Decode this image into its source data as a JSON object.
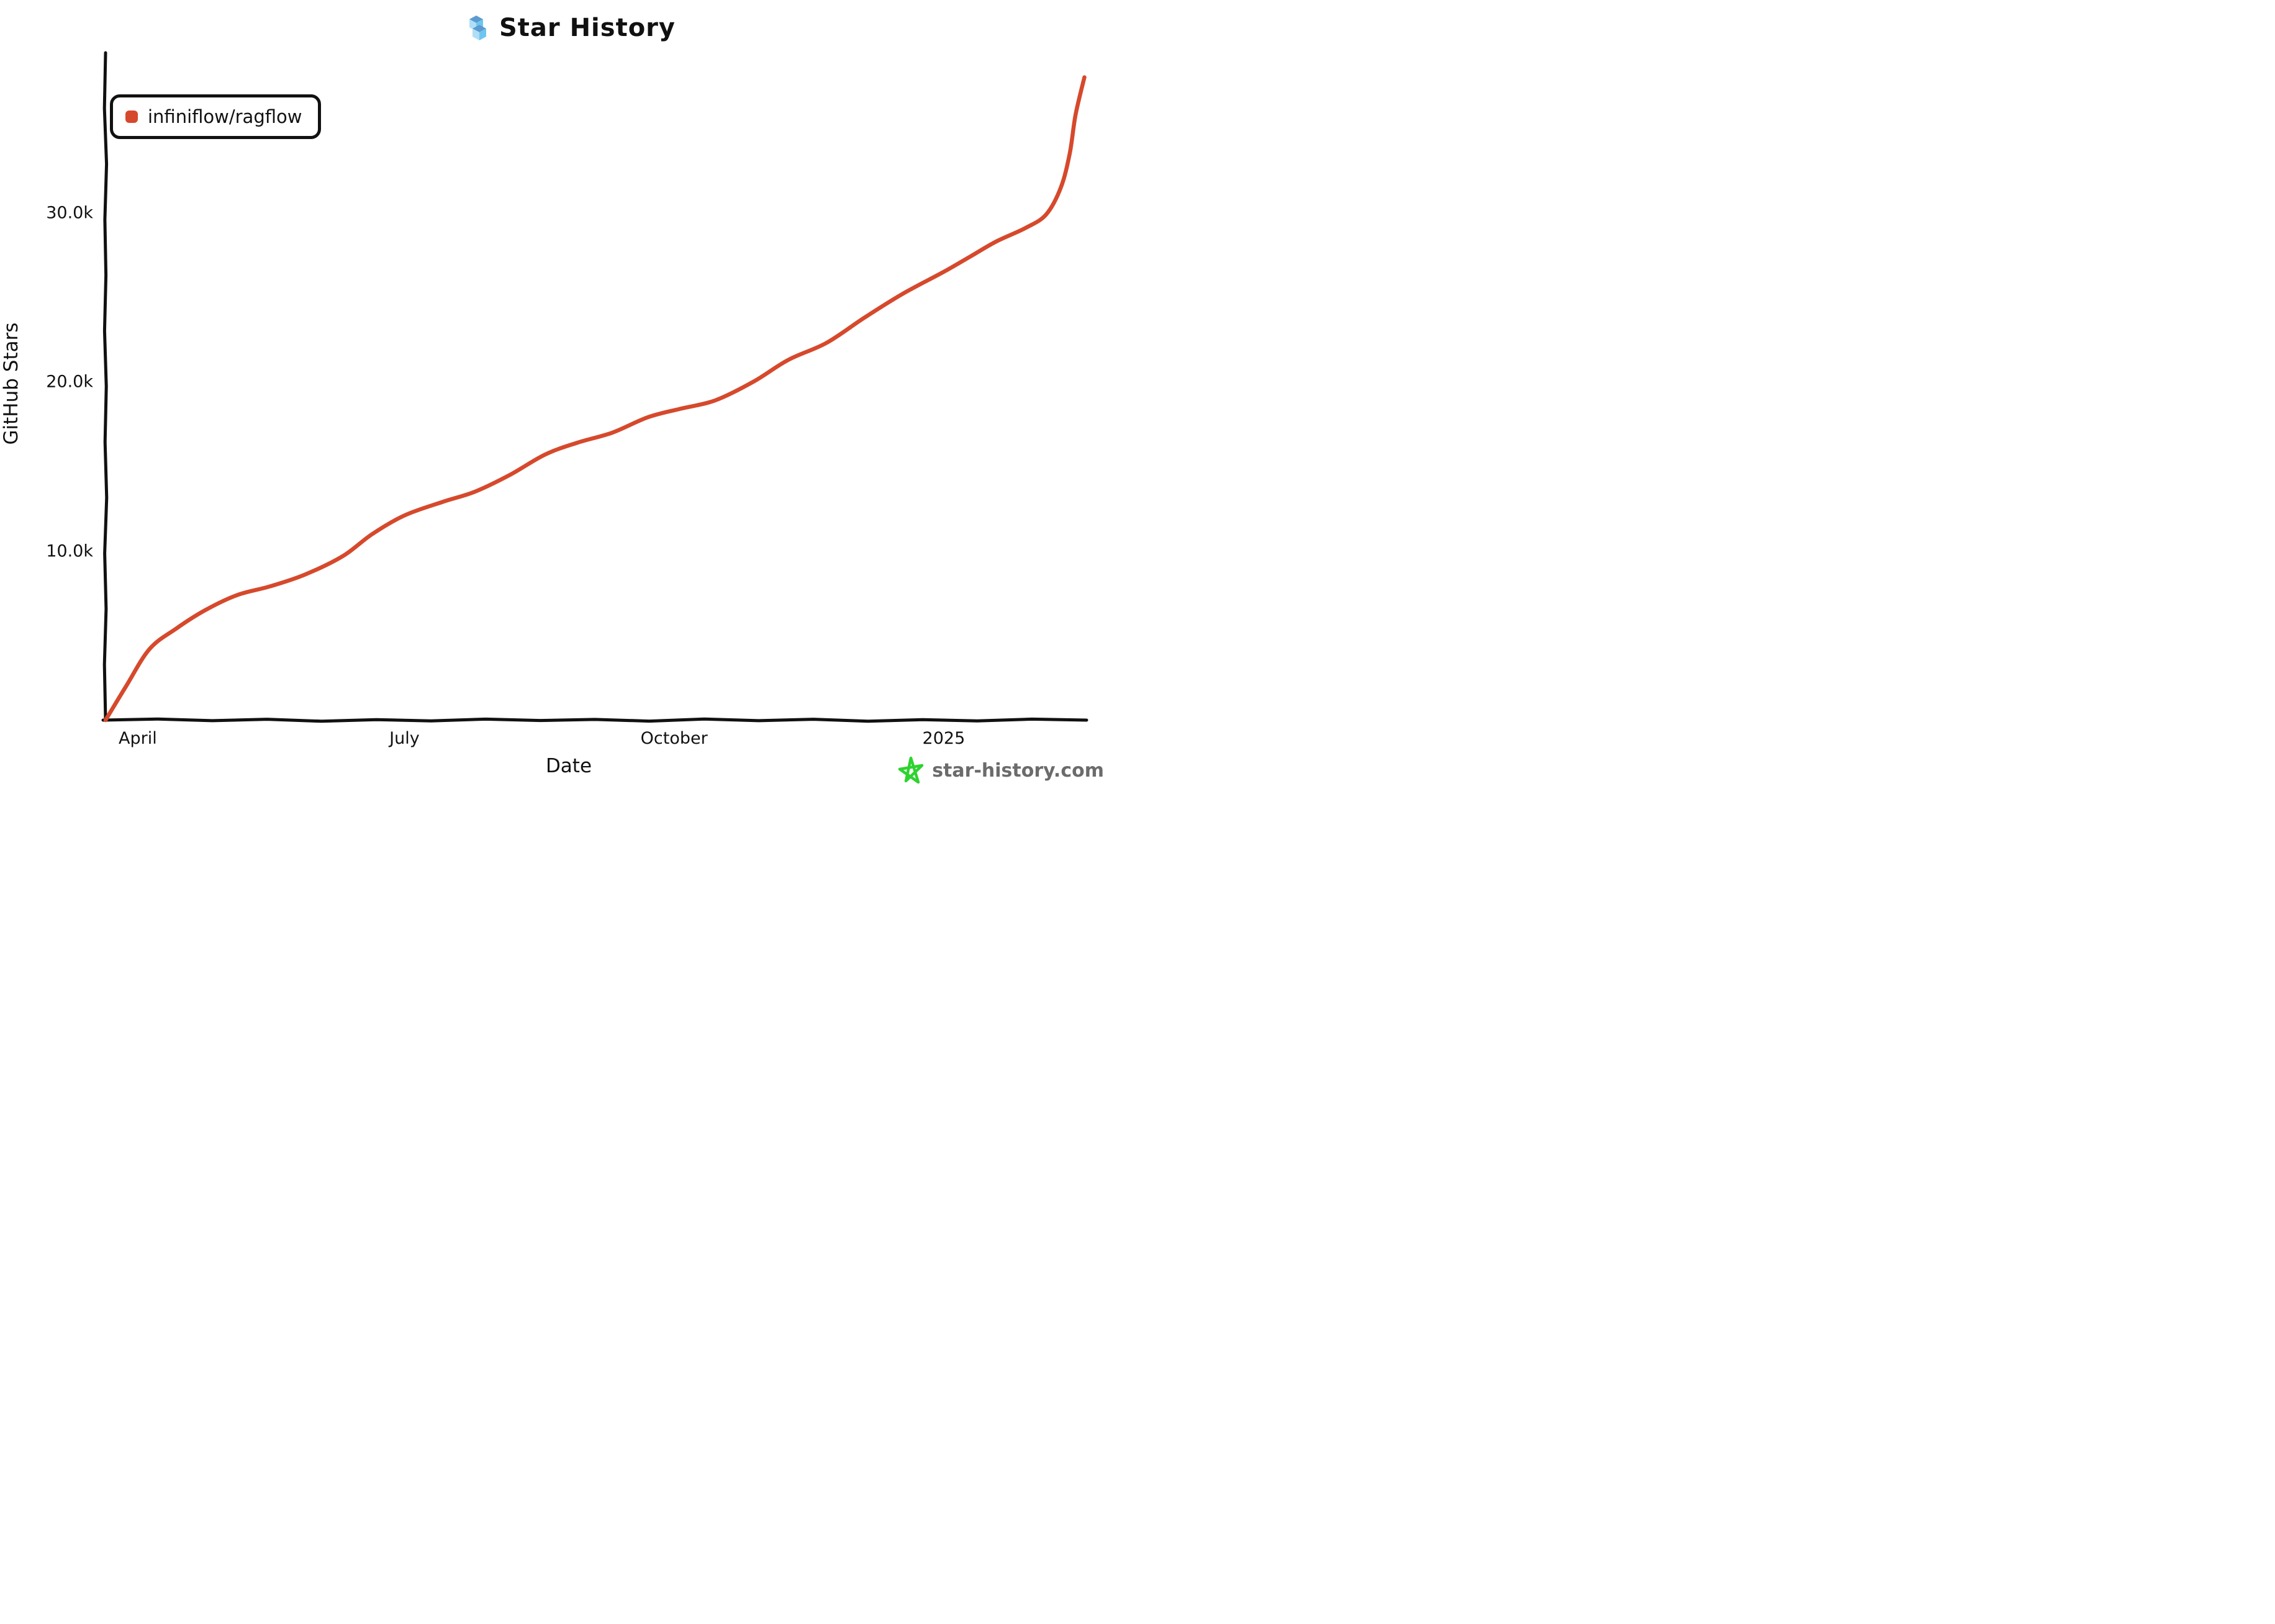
{
  "header": {
    "title": "Star History",
    "logo_colors": {
      "top": "#5b9bd0",
      "left": "#b0def7",
      "right": "#6ec6f0"
    }
  },
  "legend": {
    "items": [
      {
        "label": "infiniflow/ragflow",
        "color": "#d6492c"
      }
    ]
  },
  "watermark": {
    "text": "star-history.com",
    "star_color": "#2ed32e",
    "text_color": "#6b6b6b"
  },
  "chart_data": {
    "type": "line",
    "title": "Star History",
    "xlabel": "Date",
    "ylabel": "GitHub Stars",
    "grid": false,
    "legend_position": "top-left",
    "line_color": "#d6492c",
    "axis_color": "#111111",
    "x_range": [
      "2024-03-21",
      "2025-02-19"
    ],
    "ylim": [
      0,
      39500
    ],
    "x_ticks": [
      {
        "date": "2024-04-01",
        "label": "April"
      },
      {
        "date": "2024-07-01",
        "label": "July"
      },
      {
        "date": "2024-10-01",
        "label": "October"
      },
      {
        "date": "2025-01-01",
        "label": "2025"
      }
    ],
    "y_ticks": [
      {
        "value": 10000,
        "label": "10.0k"
      },
      {
        "value": 20000,
        "label": "20.0k"
      },
      {
        "value": 30000,
        "label": "30.0k"
      }
    ],
    "series": [
      {
        "name": "infiniflow/ragflow",
        "color": "#d6492c",
        "points": [
          [
            "2024-03-21",
            0
          ],
          [
            "2024-03-28",
            2000
          ],
          [
            "2024-04-05",
            4200
          ],
          [
            "2024-04-14",
            5400
          ],
          [
            "2024-04-24",
            6500
          ],
          [
            "2024-05-05",
            7400
          ],
          [
            "2024-05-16",
            7900
          ],
          [
            "2024-05-28",
            8600
          ],
          [
            "2024-06-10",
            9700
          ],
          [
            "2024-06-20",
            11000
          ],
          [
            "2024-07-01",
            12100
          ],
          [
            "2024-07-14",
            12900
          ],
          [
            "2024-07-25",
            13500
          ],
          [
            "2024-08-06",
            14500
          ],
          [
            "2024-08-18",
            15700
          ],
          [
            "2024-08-29",
            16400
          ],
          [
            "2024-09-10",
            17000
          ],
          [
            "2024-09-22",
            17900
          ],
          [
            "2024-10-03",
            18400
          ],
          [
            "2024-10-15",
            18900
          ],
          [
            "2024-10-28",
            20000
          ],
          [
            "2024-11-09",
            21300
          ],
          [
            "2024-11-22",
            22300
          ],
          [
            "2024-12-05",
            23800
          ],
          [
            "2024-12-18",
            25200
          ],
          [
            "2025-01-01",
            26500
          ],
          [
            "2025-01-10",
            27400
          ],
          [
            "2025-01-19",
            28300
          ],
          [
            "2025-01-29",
            29100
          ],
          [
            "2025-02-05",
            29900
          ],
          [
            "2025-02-10",
            31500
          ],
          [
            "2025-02-13",
            33500
          ],
          [
            "2025-02-15",
            35800
          ],
          [
            "2025-02-18",
            38000
          ]
        ]
      }
    ]
  }
}
